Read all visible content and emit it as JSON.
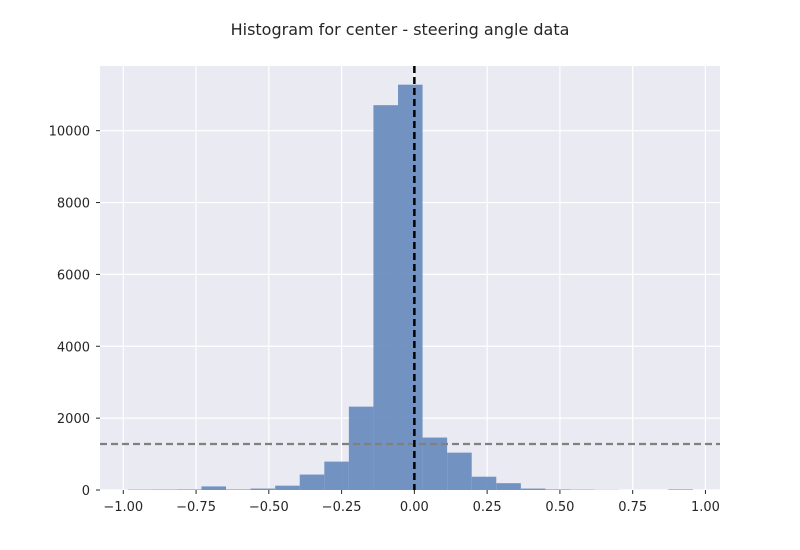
{
  "chart_data": {
    "type": "bar",
    "title": "Histogram for center - steering angle data",
    "xlabel": "",
    "ylabel": "",
    "xlim": [
      -1.08,
      1.05
    ],
    "ylim": [
      0,
      11800
    ],
    "grid": true,
    "x_ticks": [
      -1.0,
      -0.75,
      -0.5,
      -0.25,
      0.0,
      0.25,
      0.5,
      0.75,
      1.0
    ],
    "x_tick_labels": [
      "−1.00",
      "−0.75",
      "−0.50",
      "−0.25",
      "0.00",
      "0.25",
      "0.50",
      "0.75",
      "1.00"
    ],
    "y_ticks": [
      0,
      2000,
      4000,
      6000,
      8000,
      10000
    ],
    "y_tick_labels": [
      "0",
      "2000",
      "4000",
      "6000",
      "8000",
      "10000"
    ],
    "bin_edges": [
      -0.9846,
      -0.9002,
      -0.8158,
      -0.7314,
      -0.647,
      -0.5626,
      -0.4782,
      -0.3938,
      -0.3094,
      -0.225,
      -0.1406,
      -0.0562,
      0.0282,
      0.1126,
      0.197,
      0.2814,
      0.3658,
      0.4502,
      0.5346,
      0.619,
      0.7034,
      0.7878,
      0.8722,
      0.9566
    ],
    "counts": [
      10,
      12,
      15,
      100,
      15,
      40,
      120,
      430,
      790,
      2320,
      10710,
      11280,
      1460,
      1040,
      370,
      190,
      40,
      15,
      10,
      5,
      0,
      0,
      15
    ],
    "bar_color": "#6c8ebf",
    "mean_line": {
      "x": 0.0,
      "color": "#000000"
    },
    "threshold_line": {
      "y": 1280,
      "color": "#808080"
    }
  }
}
